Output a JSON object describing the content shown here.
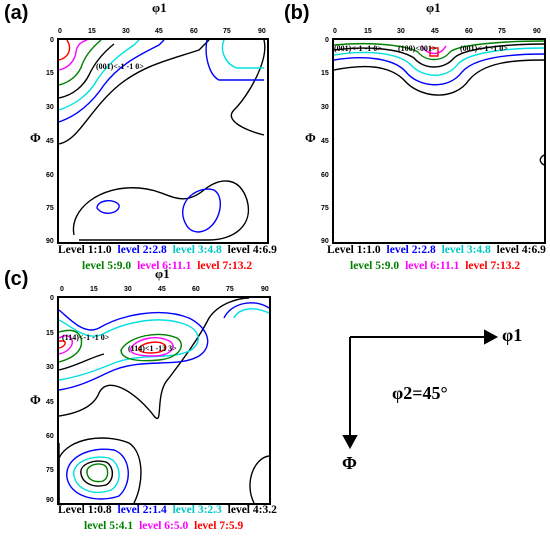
{
  "panels": {
    "a": {
      "label": "(a)",
      "x_axis": "φ1",
      "y_axis": "Φ",
      "annotations": [
        "(001)<-1 -1 0>"
      ],
      "legend_line1": [
        "Level 1:1.0",
        "level 2:2.8",
        "level 3:4.8",
        "level 4:6.9"
      ],
      "legend_line2": [
        "level 5:9.0",
        "level 6:11.1",
        "level 7:13.2"
      ]
    },
    "b": {
      "label": "(b)",
      "x_axis": "φ1",
      "y_axis": "Φ",
      "annotations": [
        "(001)<-1 -1 0>",
        "(100)<001>",
        "(001)<-1 -1 0>"
      ],
      "legend_line1": [
        "Level 1:1.0",
        "level 2:2.8",
        "level 3:4.8",
        "level 4:6.9"
      ],
      "legend_line2": [
        "level 5:9.0",
        "level 6:11.1",
        "level 7:13.2"
      ]
    },
    "c": {
      "label": "(c)",
      "x_axis": "φ1",
      "y_axis": "Φ",
      "annotations": [
        "(114)<-1 -1 0>",
        "(114)<1 -13 3>"
      ],
      "legend_line1": [
        "Level 1:0.8",
        "level 2:1.4",
        "level 3:2.3",
        "level 4:3.2"
      ],
      "legend_line2": [
        "level 5:4.1",
        "level 6:5.0",
        "level 7:5.9"
      ]
    }
  },
  "x_ticks": [
    "0",
    "15",
    "30",
    "45",
    "60",
    "75",
    "90"
  ],
  "y_ticks": [
    "0",
    "15",
    "30",
    "45",
    "60",
    "75",
    "90"
  ],
  "axes_diagram": {
    "phi1_label": "φ1",
    "big_phi_label": "Φ",
    "phi2_label": "φ2=45°"
  },
  "level_colors": [
    "#000000",
    "#0000ff",
    "#00e0e0",
    "#000000",
    "#008000",
    "#ff00ff",
    "#ff0000"
  ]
}
